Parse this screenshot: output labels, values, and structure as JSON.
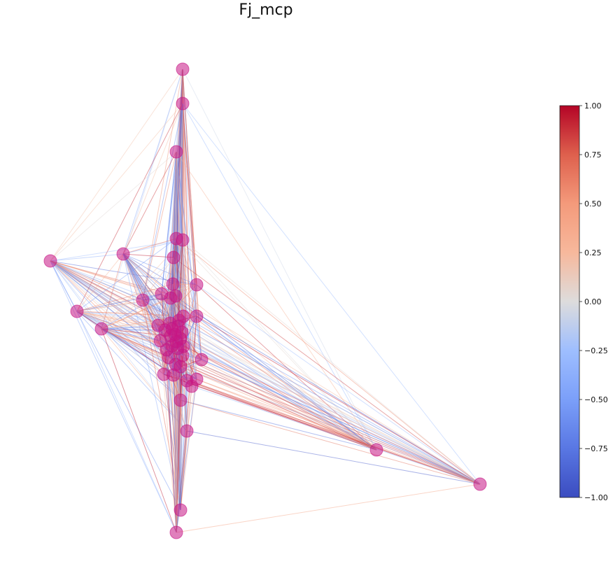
{
  "title": "Fj_mcp",
  "colorbar": {
    "colormap": "coolwarm",
    "min": -1.0,
    "max": 1.0,
    "ticks": [
      "1.00",
      "0.75",
      "0.50",
      "0.25",
      "0.00",
      "−0.25",
      "−0.50",
      "−0.75",
      "−1.00"
    ],
    "tick_values": [
      1.0,
      0.75,
      0.5,
      0.25,
      0.0,
      -0.25,
      -0.5,
      -0.75,
      -1.0
    ]
  },
  "colors": {
    "node": "#c71585",
    "node_alpha": 0.55,
    "edge_alpha": 0.45,
    "background": "#ffffff"
  }
}
